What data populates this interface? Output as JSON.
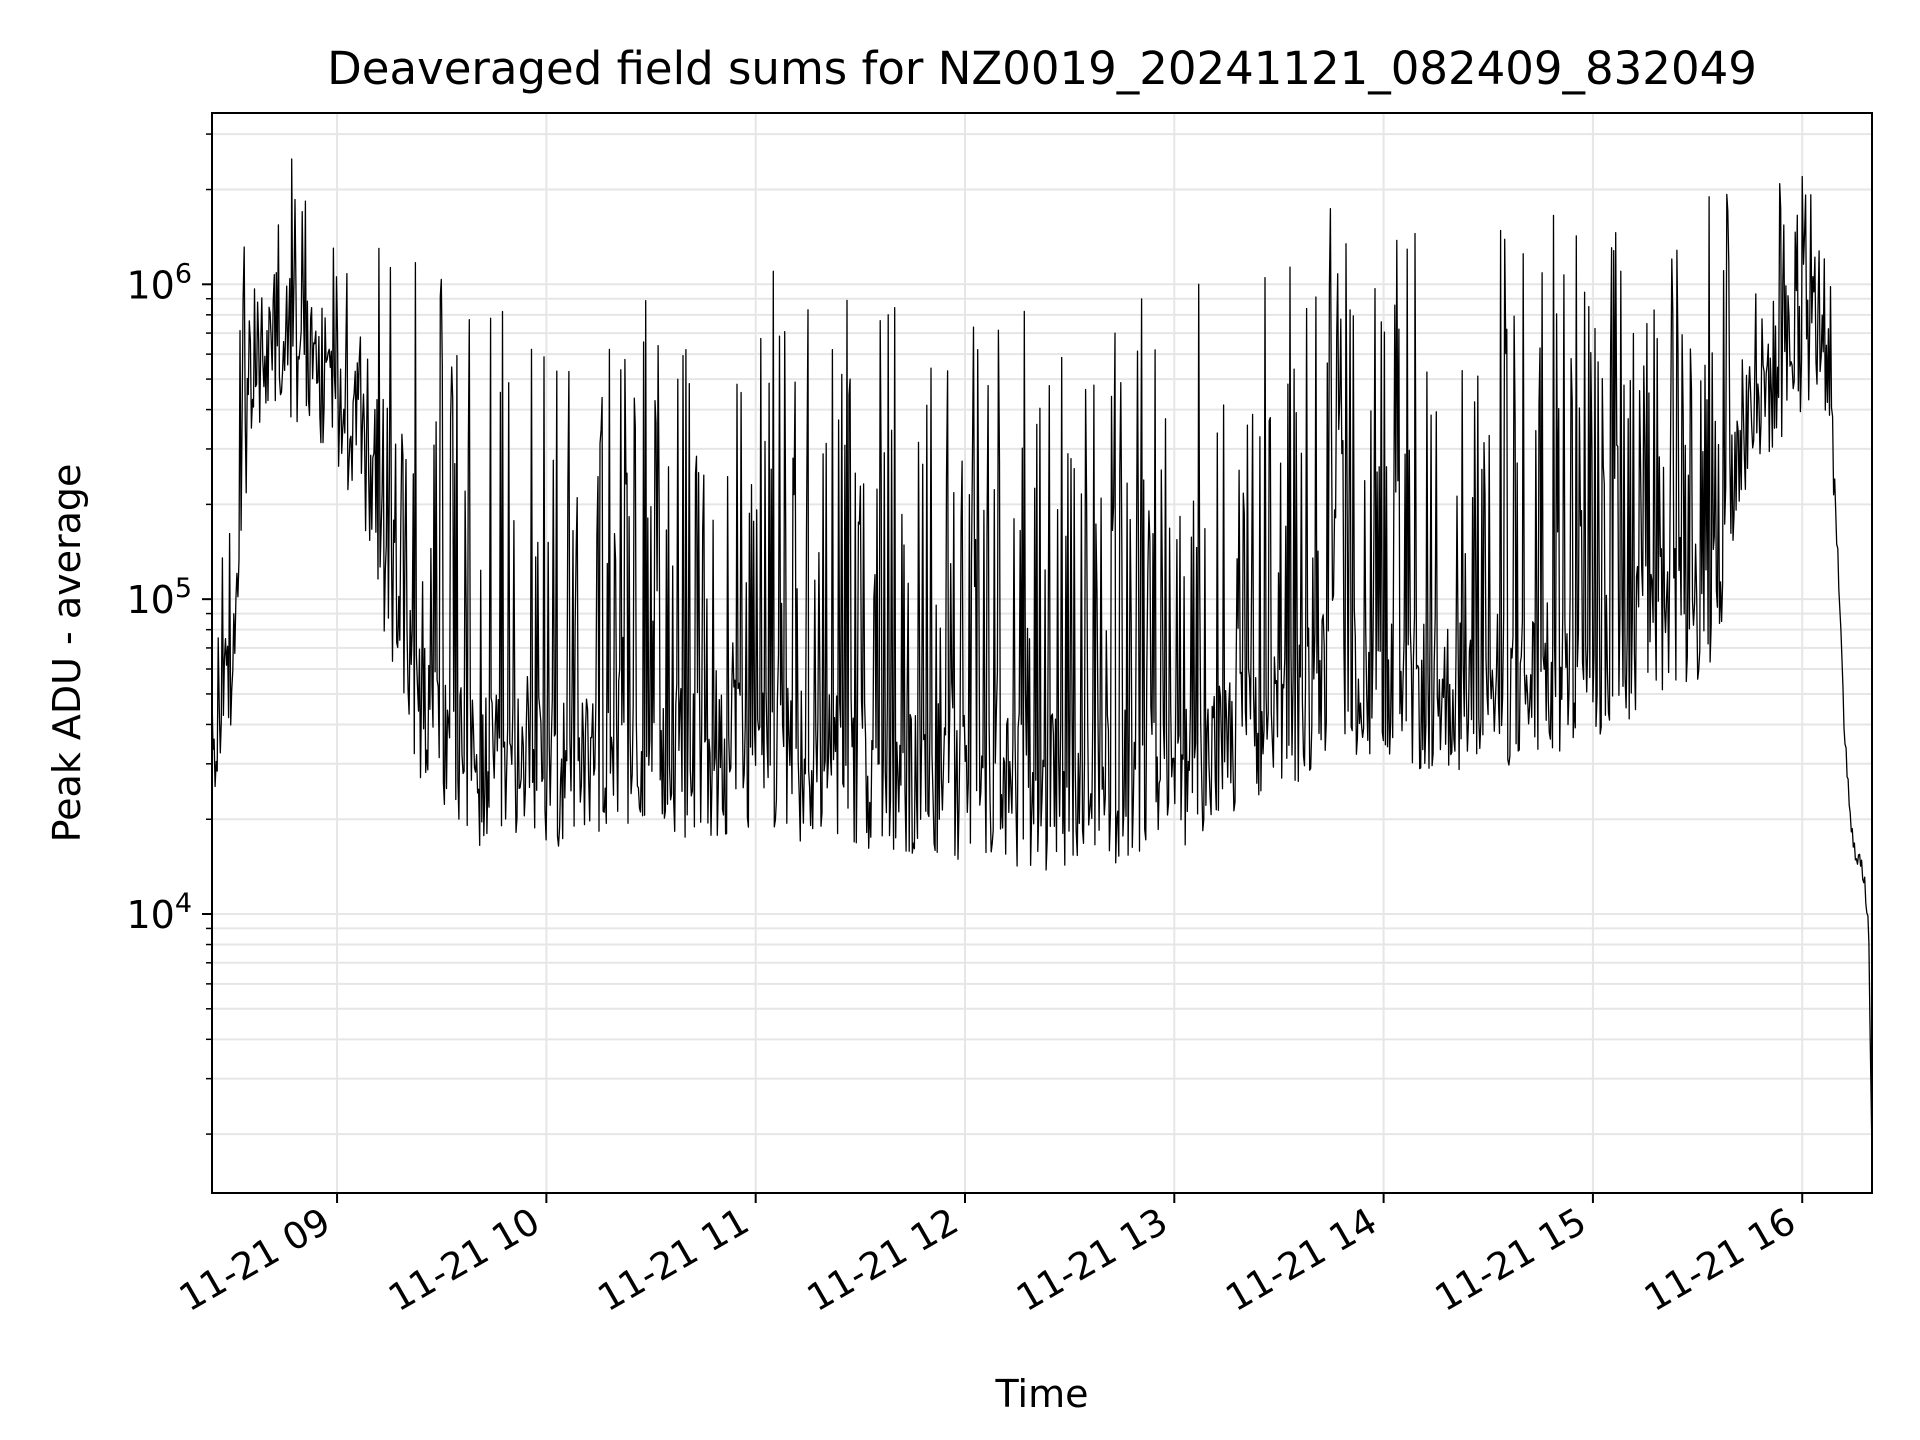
{
  "chart_data": {
    "type": "line",
    "title": "Deaveraged field sums for NZ0019_20241121_082409_832049",
    "xlabel": "Time",
    "ylabel": "Peak ADU - average",
    "yscale": "log",
    "xlim": [
      "2024-11-21T08:24:09",
      "2024-11-21T16:20:00"
    ],
    "ylim": [
      1300,
      3500000
    ],
    "grid": true,
    "grid_minor": true,
    "line_color": "#000000",
    "grid_color": "#e6e6e6",
    "x_tick_labels": [
      {
        "t": "2024-11-21T09:00:00",
        "label": "11-21 09"
      },
      {
        "t": "2024-11-21T10:00:00",
        "label": "11-21 10"
      },
      {
        "t": "2024-11-21T11:00:00",
        "label": "11-21 11"
      },
      {
        "t": "2024-11-21T12:00:00",
        "label": "11-21 12"
      },
      {
        "t": "2024-11-21T13:00:00",
        "label": "11-21 13"
      },
      {
        "t": "2024-11-21T14:00:00",
        "label": "11-21 14"
      },
      {
        "t": "2024-11-21T15:00:00",
        "label": "11-21 15"
      },
      {
        "t": "2024-11-21T16:00:00",
        "label": "11-21 16"
      }
    ],
    "y_tick_labels": [
      {
        "v": 10000,
        "base": "10",
        "exp": "4"
      },
      {
        "v": 100000,
        "base": "10",
        "exp": "5"
      },
      {
        "v": 1000000,
        "base": "10",
        "exp": "6"
      }
    ],
    "baseline_envelope": [
      {
        "t": "2024-11-21T08:24:09",
        "y": 30000
      },
      {
        "t": "2024-11-21T08:27:00",
        "y": 42000
      },
      {
        "t": "2024-11-21T08:30:00",
        "y": 48000
      },
      {
        "t": "2024-11-21T08:33:00",
        "y": 300000
      },
      {
        "t": "2024-11-21T08:36:00",
        "y": 550000
      },
      {
        "t": "2024-11-21T08:45:00",
        "y": 650000
      },
      {
        "t": "2024-11-21T08:55:00",
        "y": 550000
      },
      {
        "t": "2024-11-21T09:05:00",
        "y": 350000
      },
      {
        "t": "2024-11-21T09:15:00",
        "y": 120000
      },
      {
        "t": "2024-11-21T09:20:00",
        "y": 60000
      },
      {
        "t": "2024-11-21T09:28:00",
        "y": 38000
      },
      {
        "t": "2024-11-21T09:40:00",
        "y": 28000
      },
      {
        "t": "2024-11-21T10:00:00",
        "y": 28000
      },
      {
        "t": "2024-11-21T10:20:00",
        "y": 34000
      },
      {
        "t": "2024-11-21T10:40:00",
        "y": 30000
      },
      {
        "t": "2024-11-21T11:00:00",
        "y": 32000
      },
      {
        "t": "2024-11-21T11:30:00",
        "y": 28000
      },
      {
        "t": "2024-11-21T12:00:00",
        "y": 26000
      },
      {
        "t": "2024-11-21T12:30:00",
        "y": 24000
      },
      {
        "t": "2024-11-21T13:00:00",
        "y": 28000
      },
      {
        "t": "2024-11-21T13:30:00",
        "y": 38000
      },
      {
        "t": "2024-11-21T13:45:00",
        "y": 60000
      },
      {
        "t": "2024-11-21T14:00:00",
        "y": 50000
      },
      {
        "t": "2024-11-21T14:30:00",
        "y": 50000
      },
      {
        "t": "2024-11-21T15:00:00",
        "y": 60000
      },
      {
        "t": "2024-11-21T15:15:00",
        "y": 80000
      },
      {
        "t": "2024-11-21T15:35:00",
        "y": 100000
      },
      {
        "t": "2024-11-21T15:45:00",
        "y": 400000
      },
      {
        "t": "2024-11-21T16:00:00",
        "y": 700000
      },
      {
        "t": "2024-11-21T16:05:00",
        "y": 800000
      },
      {
        "t": "2024-11-21T16:08:00",
        "y": 600000
      },
      {
        "t": "2024-11-21T16:10:00",
        "y": 150000
      },
      {
        "t": "2024-11-21T16:12:00",
        "y": 40000
      },
      {
        "t": "2024-11-21T16:14:00",
        "y": 18000
      },
      {
        "t": "2024-11-21T16:17:00",
        "y": 14000
      },
      {
        "t": "2024-11-21T16:19:00",
        "y": 10000
      },
      {
        "t": "2024-11-21T16:20:00",
        "y": 1700
      }
    ],
    "spike_peaks": [
      {
        "t": "2024-11-21T08:47:00",
        "y": 2500000
      },
      {
        "t": "2024-11-21T08:50:00",
        "y": 1700000
      },
      {
        "t": "2024-11-21T09:12:00",
        "y": 1300000
      },
      {
        "t": "2024-11-21T09:44:00",
        "y": 780000
      },
      {
        "t": "2024-11-21T10:03:00",
        "y": 530000
      },
      {
        "t": "2024-11-21T10:40:00",
        "y": 620000
      },
      {
        "t": "2024-11-21T11:15:00",
        "y": 830000
      },
      {
        "t": "2024-11-21T11:38:00",
        "y": 800000
      },
      {
        "t": "2024-11-21T12:17:00",
        "y": 820000
      },
      {
        "t": "2024-11-21T12:43:00",
        "y": 700000
      },
      {
        "t": "2024-11-21T13:07:00",
        "y": 1000000
      },
      {
        "t": "2024-11-21T13:26:00",
        "y": 1050000
      },
      {
        "t": "2024-11-21T14:09:00",
        "y": 1450000
      },
      {
        "t": "2024-11-21T14:40:00",
        "y": 1250000
      },
      {
        "t": "2024-11-21T15:08:00",
        "y": 1100000
      },
      {
        "t": "2024-11-21T16:00:00",
        "y": 2200000
      }
    ]
  }
}
